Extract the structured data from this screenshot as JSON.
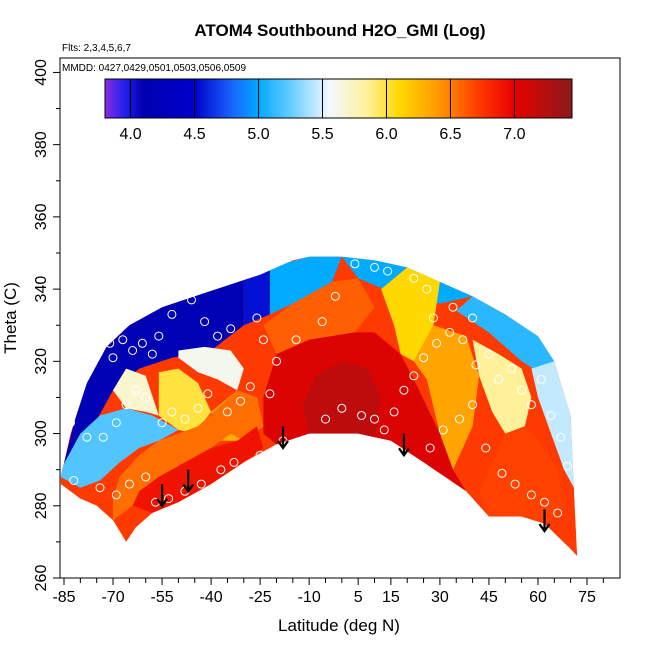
{
  "chart_data": {
    "type": "heatmap",
    "title": "ATOM4 Southbound H2O_GMI (Log)",
    "subtitle_flights": "Flts: 2,3,4,5,6,7",
    "subtitle_dates": "MMDD: 0427,0429,0501,0503,0506,0509",
    "xlabel": "Latitude (deg N)",
    "ylabel": "Theta (C)",
    "xlim": [
      -87,
      82
    ],
    "ylim": [
      260,
      404
    ],
    "x_ticks": [
      -85,
      -70,
      -55,
      -40,
      -25,
      -10,
      5,
      15,
      30,
      45,
      60,
      75
    ],
    "x_tick_labels": [
      "-85",
      "-70",
      "-55",
      "-40",
      "-25",
      "-10",
      "5",
      "15",
      "30",
      "45",
      "60",
      "75"
    ],
    "x_minor_step": 5,
    "y_ticks": [
      260,
      280,
      300,
      320,
      340,
      360,
      380,
      400
    ],
    "y_tick_labels": [
      "260",
      "280",
      "300",
      "320",
      "340",
      "360",
      "380",
      "400"
    ],
    "colorbar": {
      "range": [
        3.8,
        7.45
      ],
      "ticks": [
        4.0,
        4.5,
        5.0,
        5.5,
        6.0,
        6.5,
        7.0
      ],
      "tick_labels": [
        "4.0",
        "4.5",
        "5.0",
        "5.5",
        "6.0",
        "6.5",
        "7.0"
      ],
      "stops": [
        [
          3.8,
          "#8a2be2"
        ],
        [
          3.95,
          "#2222ee"
        ],
        [
          4.1,
          "#0000b0"
        ],
        [
          4.5,
          "#0000cc"
        ],
        [
          4.8,
          "#1a66ff"
        ],
        [
          5.0,
          "#00aaff"
        ],
        [
          5.25,
          "#66ccff"
        ],
        [
          5.55,
          "#f2f8ff"
        ],
        [
          5.85,
          "#fff19a"
        ],
        [
          6.1,
          "#ffd800"
        ],
        [
          6.4,
          "#ff9a00"
        ],
        [
          6.75,
          "#ff3300"
        ],
        [
          7.0,
          "#e60000"
        ],
        [
          7.45,
          "#8b1a1a"
        ]
      ]
    },
    "domain_bottom": [
      [
        -86,
        286
      ],
      [
        -80,
        282
      ],
      [
        -75,
        280
      ],
      [
        -70,
        276
      ],
      [
        -66,
        270
      ],
      [
        -63,
        274
      ],
      [
        -58,
        278
      ],
      [
        -50,
        281
      ],
      [
        -40,
        286
      ],
      [
        -30,
        292
      ],
      [
        -20,
        297
      ],
      [
        -10,
        300
      ],
      [
        5,
        300
      ],
      [
        15,
        298
      ],
      [
        25,
        292
      ],
      [
        38,
        284
      ],
      [
        45,
        277
      ],
      [
        55,
        277
      ],
      [
        62,
        275
      ],
      [
        70,
        268
      ],
      [
        72,
        266
      ]
    ],
    "domain_top": [
      [
        72,
        266
      ],
      [
        71,
        285
      ],
      [
        70,
        305
      ],
      [
        65,
        320
      ],
      [
        60,
        327
      ],
      [
        50,
        333
      ],
      [
        40,
        338
      ],
      [
        30,
        342
      ],
      [
        20,
        346
      ],
      [
        10,
        348
      ],
      [
        0,
        349
      ],
      [
        -10,
        349
      ],
      [
        -15,
        348
      ],
      [
        -25,
        344
      ],
      [
        -35,
        341
      ],
      [
        -45,
        338
      ],
      [
        -55,
        335
      ],
      [
        -65,
        330
      ],
      [
        -72,
        324
      ],
      [
        -78,
        314
      ],
      [
        -83,
        300
      ],
      [
        -86,
        288
      ]
    ],
    "regions": [
      {
        "value": 4.15,
        "poly": [
          [
            -86,
            288
          ],
          [
            -80,
            310
          ],
          [
            -72,
            326
          ],
          [
            -62,
            333
          ],
          [
            -50,
            338
          ],
          [
            -38,
            341
          ],
          [
            -30,
            343
          ],
          [
            -30,
            330
          ],
          [
            -40,
            323
          ],
          [
            -52,
            321
          ],
          [
            -62,
            318
          ],
          [
            -70,
            312
          ],
          [
            -76,
            302
          ],
          [
            -86,
            290
          ]
        ]
      },
      {
        "value": 4.55,
        "poly": [
          [
            -30,
            343
          ],
          [
            -22,
            346
          ],
          [
            -22,
            333
          ],
          [
            -30,
            330
          ]
        ]
      },
      {
        "value": 5.0,
        "poly": [
          [
            -22,
            346
          ],
          [
            -10,
            349
          ],
          [
            0,
            349
          ],
          [
            -3,
            342
          ],
          [
            -15,
            336
          ],
          [
            -22,
            333
          ]
        ]
      },
      {
        "value": 5.0,
        "poly": [
          [
            0,
            349
          ],
          [
            10,
            348
          ],
          [
            20,
            346
          ],
          [
            30,
            342
          ],
          [
            40,
            338
          ],
          [
            30,
            336
          ],
          [
            18,
            338
          ],
          [
            5,
            343
          ]
        ]
      },
      {
        "value": 5.1,
        "poly": [
          [
            40,
            338
          ],
          [
            50,
            333
          ],
          [
            60,
            327
          ],
          [
            65,
            320
          ],
          [
            62,
            316
          ],
          [
            55,
            320
          ],
          [
            45,
            328
          ],
          [
            35,
            334
          ]
        ]
      },
      {
        "value": 5.2,
        "poly": [
          [
            -86,
            288
          ],
          [
            -80,
            285
          ],
          [
            -74,
            287
          ],
          [
            -68,
            292
          ],
          [
            -62,
            296
          ],
          [
            -56,
            298
          ],
          [
            -50,
            301
          ],
          [
            -58,
            305
          ],
          [
            -66,
            307
          ],
          [
            -74,
            305
          ],
          [
            -80,
            300
          ],
          [
            -86,
            290
          ]
        ]
      },
      {
        "value": 5.45,
        "poly": [
          [
            65,
            320
          ],
          [
            70,
            305
          ],
          [
            71,
            285
          ],
          [
            68,
            290
          ],
          [
            64,
            300
          ],
          [
            60,
            310
          ],
          [
            58,
            318
          ]
        ]
      },
      {
        "value": 5.6,
        "poly": [
          [
            -50,
            321
          ],
          [
            -44,
            317
          ],
          [
            -38,
            315
          ],
          [
            -32,
            312
          ],
          [
            -30,
            318
          ],
          [
            -34,
            323
          ],
          [
            -42,
            324
          ],
          [
            -50,
            323
          ]
        ]
      },
      {
        "value": 5.7,
        "poly": [
          [
            -66,
            307
          ],
          [
            -60,
            306
          ],
          [
            -56,
            305
          ],
          [
            -60,
            316
          ],
          [
            -66,
            318
          ],
          [
            -70,
            312
          ]
        ]
      },
      {
        "value": 5.85,
        "poly": [
          [
            40,
            326
          ],
          [
            48,
            322
          ],
          [
            55,
            318
          ],
          [
            58,
            310
          ],
          [
            56,
            302
          ],
          [
            50,
            300
          ],
          [
            46,
            306
          ],
          [
            42,
            316
          ]
        ]
      },
      {
        "value": 6.0,
        "poly": [
          [
            -56,
            305
          ],
          [
            -50,
            301
          ],
          [
            -45,
            300
          ],
          [
            -40,
            306
          ],
          [
            -44,
            314
          ],
          [
            -50,
            318
          ],
          [
            -56,
            317
          ]
        ]
      },
      {
        "value": 6.1,
        "poly": [
          [
            20,
            346
          ],
          [
            30,
            342
          ],
          [
            28,
            330
          ],
          [
            22,
            320
          ],
          [
            18,
            322
          ],
          [
            16,
            330
          ],
          [
            12,
            340
          ]
        ]
      },
      {
        "value": 6.3,
        "poly": [
          [
            -40,
            306
          ],
          [
            -32,
            312
          ],
          [
            -26,
            310
          ],
          [
            -24,
            302
          ],
          [
            -30,
            298
          ],
          [
            -38,
            298
          ]
        ]
      },
      {
        "value": 6.35,
        "poly": [
          [
            28,
            330
          ],
          [
            38,
            327
          ],
          [
            42,
            316
          ],
          [
            40,
            302
          ],
          [
            34,
            290
          ],
          [
            30,
            300
          ],
          [
            26,
            315
          ],
          [
            22,
            320
          ]
        ]
      },
      {
        "value": 6.6,
        "poly": [
          [
            -24,
            330
          ],
          [
            -15,
            336
          ],
          [
            -3,
            342
          ],
          [
            5,
            343
          ],
          [
            10,
            335
          ],
          [
            4,
            328
          ],
          [
            -10,
            326
          ],
          [
            -20,
            322
          ]
        ]
      },
      {
        "value": 6.55,
        "poly": [
          [
            -70,
            276
          ],
          [
            -64,
            280
          ],
          [
            -58,
            286
          ],
          [
            -52,
            290
          ],
          [
            -46,
            293
          ],
          [
            -40,
            296
          ],
          [
            -34,
            300
          ],
          [
            -30,
            298
          ],
          [
            -24,
            302
          ],
          [
            -26,
            310
          ],
          [
            -32,
            312
          ],
          [
            -38,
            307
          ],
          [
            -44,
            302
          ],
          [
            -50,
            300
          ],
          [
            -56,
            298
          ],
          [
            -62,
            294
          ],
          [
            -68,
            288
          ],
          [
            -70,
            282
          ]
        ]
      },
      {
        "value": 6.7,
        "poly": [
          [
            45,
            277
          ],
          [
            55,
            277
          ],
          [
            62,
            275
          ],
          [
            68,
            280
          ],
          [
            66,
            290
          ],
          [
            60,
            298
          ],
          [
            56,
            302
          ],
          [
            50,
            300
          ],
          [
            46,
            292
          ],
          [
            42,
            284
          ]
        ]
      },
      {
        "value": 6.9,
        "poly": [
          [
            -64,
            280
          ],
          [
            -58,
            278
          ],
          [
            -50,
            281
          ],
          [
            -40,
            286
          ],
          [
            -30,
            292
          ],
          [
            -24,
            296
          ],
          [
            -26,
            302
          ],
          [
            -32,
            298
          ],
          [
            -40,
            296
          ],
          [
            -48,
            292
          ],
          [
            -56,
            288
          ],
          [
            -62,
            284
          ]
        ]
      },
      {
        "value": 7.05,
        "poly": [
          [
            -20,
            297
          ],
          [
            -10,
            300
          ],
          [
            5,
            300
          ],
          [
            15,
            298
          ],
          [
            25,
            292
          ],
          [
            38,
            284
          ],
          [
            34,
            290
          ],
          [
            30,
            300
          ],
          [
            22,
            315
          ],
          [
            18,
            322
          ],
          [
            10,
            328
          ],
          [
            4,
            328
          ],
          [
            -10,
            326
          ],
          [
            -20,
            322
          ],
          [
            -24,
            310
          ],
          [
            -24,
            300
          ]
        ]
      },
      {
        "value": 7.2,
        "poly": [
          [
            -10,
            300
          ],
          [
            5,
            300
          ],
          [
            10,
            299
          ],
          [
            12,
            310
          ],
          [
            8,
            318
          ],
          [
            0,
            320
          ],
          [
            -8,
            316
          ],
          [
            -12,
            308
          ]
        ]
      }
    ],
    "annotation_arrows": [
      [
        -55,
        286,
        280
      ],
      [
        -47,
        290,
        284
      ],
      [
        -18,
        302,
        296
      ],
      [
        19,
        300,
        294
      ],
      [
        62,
        279,
        273
      ]
    ],
    "sample_circles": [
      [
        -82,
        320
      ],
      [
        -79,
        322
      ],
      [
        -72,
        330
      ],
      [
        -71,
        325
      ],
      [
        -70,
        321
      ],
      [
        -67,
        326
      ],
      [
        -66,
        331
      ],
      [
        -64,
        323
      ],
      [
        -61,
        325
      ],
      [
        -58,
        322
      ],
      [
        -56,
        327
      ],
      [
        -52,
        333
      ],
      [
        -46,
        337
      ],
      [
        -42,
        331
      ],
      [
        -38,
        327
      ],
      [
        -34,
        329
      ],
      [
        -26,
        332
      ],
      [
        -24,
        326
      ],
      [
        -20,
        320
      ],
      [
        -14,
        326
      ],
      [
        -6,
        331
      ],
      [
        -2,
        338
      ],
      [
        4,
        347
      ],
      [
        10,
        346
      ],
      [
        14,
        345
      ],
      [
        22,
        343
      ],
      [
        26,
        340
      ],
      [
        28,
        332
      ],
      [
        34,
        335
      ],
      [
        40,
        332
      ],
      [
        -83,
        303
      ],
      [
        -78,
        299
      ],
      [
        -73,
        299
      ],
      [
        -69,
        303
      ],
      [
        -66,
        308
      ],
      [
        -63,
        312
      ],
      [
        -60,
        310
      ],
      [
        -55,
        303
      ],
      [
        -52,
        306
      ],
      [
        -48,
        304
      ],
      [
        -44,
        307
      ],
      [
        -41,
        311
      ],
      [
        -35,
        306
      ],
      [
        -31,
        309
      ],
      [
        -28,
        313
      ],
      [
        -22,
        311
      ],
      [
        -82,
        287
      ],
      [
        -74,
        285
      ],
      [
        -69,
        283
      ],
      [
        -65,
        286
      ],
      [
        -60,
        288
      ],
      [
        -57,
        281
      ],
      [
        -53,
        282
      ],
      [
        -48,
        284
      ],
      [
        -43,
        286
      ],
      [
        -37,
        290
      ],
      [
        -33,
        292
      ],
      [
        -25,
        294
      ],
      [
        -18,
        298
      ],
      [
        -5,
        304
      ],
      [
        0,
        307
      ],
      [
        6,
        305
      ],
      [
        10,
        304
      ],
      [
        13,
        301
      ],
      [
        16,
        306
      ],
      [
        19,
        312
      ],
      [
        22,
        316
      ],
      [
        25,
        321
      ],
      [
        29,
        325
      ],
      [
        33,
        328
      ],
      [
        37,
        326
      ],
      [
        41,
        319
      ],
      [
        45,
        322
      ],
      [
        48,
        315
      ],
      [
        52,
        318
      ],
      [
        55,
        312
      ],
      [
        58,
        308
      ],
      [
        61,
        315
      ],
      [
        64,
        305
      ],
      [
        67,
        299
      ],
      [
        69,
        291
      ],
      [
        27,
        296
      ],
      [
        31,
        301
      ],
      [
        36,
        304
      ],
      [
        40,
        308
      ],
      [
        44,
        296
      ],
      [
        49,
        289
      ],
      [
        53,
        286
      ],
      [
        58,
        283
      ],
      [
        62,
        281
      ],
      [
        66,
        278
      ]
    ]
  }
}
